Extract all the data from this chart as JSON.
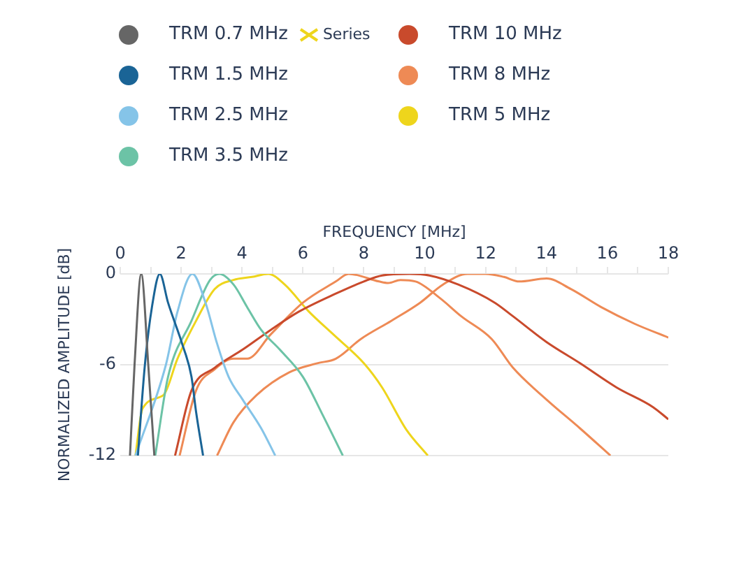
{
  "chart_data": {
    "type": "line",
    "xlabel": "FREQUENCY [MHz]",
    "ylabel": "NORMALIZED AMPLITUDE [dB]",
    "xlim": [
      0,
      18
    ],
    "ylim": [
      -12,
      0
    ],
    "xticks": [
      0,
      {
        "value": 1,
        "label": null
      },
      2,
      {
        "value": 3,
        "label": null
      },
      4,
      {
        "value": 5,
        "label": null
      },
      6,
      {
        "value": 7,
        "label": null
      },
      8,
      {
        "value": 9,
        "label": null
      },
      10,
      {
        "value": 11,
        "label": null
      },
      12,
      {
        "value": 13,
        "label": null
      },
      14,
      {
        "value": 15,
        "label": null
      },
      16,
      {
        "value": 17,
        "label": null
      },
      18
    ],
    "yticks": [
      0,
      -6,
      -12
    ],
    "grid": "y",
    "legend": "top left",
    "marker": "none",
    "line_style": "solid",
    "series": [
      {
        "name": "TRM 0.7 MHz",
        "color": "#666666",
        "x": [
          0.32,
          0.47,
          0.69,
          0.92,
          1.12
        ],
        "values": [
          -12,
          -6,
          0,
          -6,
          -12
        ]
      },
      {
        "name": "Series",
        "type": "scatter",
        "marker": "cross",
        "color": "#eed51c"
      },
      {
        "name": "TRM 1.5 MHz",
        "color": "#1a6496",
        "x": [
          0.58,
          0.81,
          1.04,
          1.3,
          1.57,
          2.03,
          2.34,
          2.49,
          2.72
        ],
        "values": [
          -12,
          -6,
          -2.2,
          0,
          -1.9,
          -4.6,
          -6.8,
          -9.1,
          -12
        ]
      },
      {
        "name": "TRM 2.5 MHz",
        "color": "#85c4e8",
        "x": [
          0.5,
          1.5,
          1.88,
          2.37,
          2.8,
          3.18,
          3.56,
          4.02,
          4.63,
          5.09
        ],
        "values": [
          -12,
          -6,
          -2.5,
          0,
          -1.9,
          -4.6,
          -6.8,
          -8.3,
          -10.2,
          -12
        ]
      },
      {
        "name": "TRM 3.5 MHz",
        "color": "#6cc3a6",
        "x": [
          1.15,
          1.57,
          2.34,
          2.95,
          3.26,
          3.72,
          4.17,
          4.63,
          5.24,
          6.0,
          6.62,
          7.31
        ],
        "values": [
          -12,
          -6.8,
          -3.1,
          -0.4,
          0,
          -0.7,
          -2.2,
          -3.7,
          -5,
          -6.8,
          -9.2,
          -12
        ]
      },
      {
        "name": "TRM 10 MHz",
        "color": "#c94a2c",
        "x": [
          1.8,
          2.34,
          3.1,
          4.02,
          4.94,
          5.86,
          7.08,
          8.0,
          8.6,
          9.5,
          10.15,
          11.1,
          12.3,
          12.9,
          14.0,
          15.1,
          16.3,
          17.5,
          18
        ],
        "values": [
          -12,
          -7.7,
          -6.2,
          -5,
          -3.7,
          -2.5,
          -1.3,
          -0.5,
          -0.1,
          0,
          -0.1,
          -0.7,
          -1.9,
          -2.8,
          -4.5,
          -5.9,
          -7.5,
          -8.8,
          -9.6
        ]
      },
      {
        "name": "TRM 8 MHz",
        "color": "#ee8a55",
        "x": [
          1.95,
          2.49,
          3.1,
          3.72,
          4.17,
          4.94,
          6.0,
          7.08,
          7.5,
          8.5,
          8.8,
          9.2,
          9.7,
          10.5,
          11.2,
          12.2,
          12.9,
          14.0,
          15.1,
          16.1
        ],
        "values": [
          -12,
          -7.7,
          -6.3,
          -5.6,
          -5.6,
          -4,
          -1.9,
          -0.5,
          0,
          -0.5,
          -0.6,
          -0.4,
          -0.5,
          -1.6,
          -2.8,
          -4.3,
          -6.2,
          -8.3,
          -10.2,
          -12
        ]
      },
      {
        "name": "TRM 5 MHz",
        "color": "#eed51c",
        "x": [
          0.5,
          0.73,
          1.42,
          1.88,
          2.49,
          3.1,
          3.72,
          4.33,
          4.86,
          5.4,
          6.2,
          7.0,
          8.0,
          8.6,
          9.4,
          10.1
        ],
        "values": [
          -12,
          -8.9,
          -8,
          -5.6,
          -3.1,
          -1,
          -0.4,
          -0.2,
          0,
          -0.7,
          -2.5,
          -4,
          -5.9,
          -7.5,
          -10.3,
          -12
        ]
      },
      {
        "color": "#ee8a55",
        "x": [
          3.18,
          3.72,
          4.48,
          5.55,
          6.47,
          7.08,
          7.9,
          8.9,
          9.85,
          10.6,
          11.4,
          12.0,
          12.6,
          13.1,
          14.0,
          14.8,
          15.8,
          16.9,
          18
        ],
        "values": [
          -12,
          -9.8,
          -8,
          -6.5,
          -5.9,
          -5.6,
          -4.3,
          -3.1,
          -1.9,
          -0.7,
          0,
          0,
          -0.2,
          -0.5,
          -0.3,
          -1,
          -2.2,
          -3.3,
          -4.2
        ]
      }
    ]
  }
}
